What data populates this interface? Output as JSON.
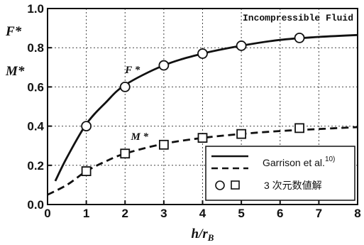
{
  "chart_data": {
    "type": "line",
    "title": "Incompressible Fluid",
    "xlabel": "h/r",
    "xlabel_sub": "B",
    "ylabel_top": "F*",
    "ylabel_bottom": "M*",
    "xlim": [
      0,
      8
    ],
    "ylim": [
      0,
      1.0
    ],
    "x_ticks": [
      "0",
      "1",
      "2",
      "3",
      "4",
      "5",
      "6",
      "7",
      "8"
    ],
    "y_ticks": [
      "0.0",
      "0.2",
      "0.4",
      "0.6",
      "0.8",
      "1.0"
    ],
    "grid": true,
    "legend_position": "bottom-right",
    "annotations": {
      "F_label": "F *",
      "M_label": "M *"
    },
    "series": [
      {
        "name": "Garrison et al.10)",
        "role": "F* curve",
        "style": "solid",
        "x": [
          0.2,
          0.5,
          1.0,
          1.5,
          2.0,
          3.0,
          4.0,
          5.0,
          6.0,
          7.0,
          8.0
        ],
        "y": [
          0.12,
          0.24,
          0.41,
          0.52,
          0.61,
          0.71,
          0.77,
          0.81,
          0.84,
          0.855,
          0.865
        ]
      },
      {
        "name": "Garrison et al.10)",
        "role": "M* curve",
        "style": "dashed",
        "x": [
          0.0,
          0.5,
          1.0,
          1.5,
          2.0,
          3.0,
          4.0,
          5.0,
          6.0,
          7.0,
          8.0
        ],
        "y": [
          0.05,
          0.1,
          0.17,
          0.22,
          0.26,
          0.31,
          0.34,
          0.36,
          0.375,
          0.385,
          0.395
        ]
      },
      {
        "name": "3 次元数値解",
        "role": "F* numerical",
        "marker": "circle",
        "x": [
          1.0,
          2.0,
          3.0,
          4.0,
          5.0,
          6.5
        ],
        "y": [
          0.4,
          0.6,
          0.71,
          0.77,
          0.81,
          0.85
        ]
      },
      {
        "name": "3 次元数値解",
        "role": "M* numerical",
        "marker": "square",
        "x": [
          1.0,
          2.0,
          3.0,
          4.0,
          5.0,
          6.5
        ],
        "y": [
          0.17,
          0.26,
          0.305,
          0.34,
          0.36,
          0.39
        ]
      }
    ],
    "legend": {
      "line_label": "Garrison et al.",
      "line_superscript": "10)",
      "marker_label": "3 次元数値解"
    }
  }
}
